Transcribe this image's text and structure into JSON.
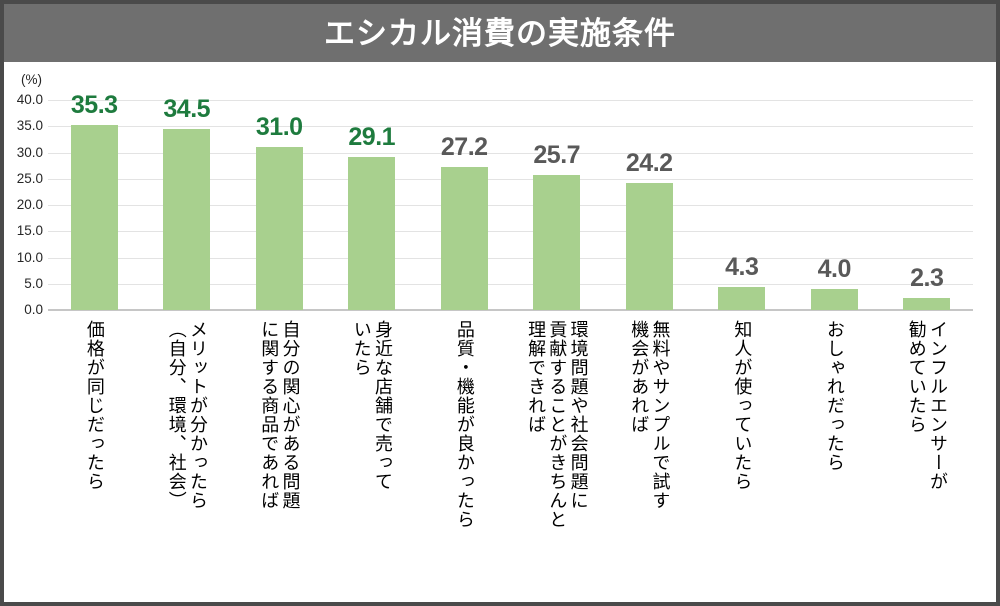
{
  "frame": {
    "border_color": "#4a4a4a",
    "background": "#ffffff"
  },
  "header": {
    "title": "エシカル消費の実施条件",
    "background": "#6f6f6f",
    "text_color": "#ffffff"
  },
  "chart_data": {
    "type": "bar",
    "title": "エシカル消費の実施条件",
    "unit_label": "(%)",
    "xlabel": "",
    "ylabel": "(%)",
    "ylim": [
      0,
      40
    ],
    "ytick_step": 5,
    "ytick_labels": [
      "40.0",
      "35.0",
      "30.0",
      "25.0",
      "20.0",
      "15.0",
      "10.0",
      "5.0",
      "0.0"
    ],
    "grid": true,
    "legend": "none",
    "bar_color": "#a8d08e",
    "gridline_color": "#e3e3e3",
    "baseline_color": "#c6c6c6",
    "value_label_color_highlight": "#1e7b3e",
    "value_label_color_normal": "#595959",
    "categories": [
      [
        "価格が同じだったら"
      ],
      [
        "メリットが分かったら",
        "（自分、環境、社会）"
      ],
      [
        "自分の関心がある問題",
        "に関する商品であれば"
      ],
      [
        "身近な店舗で売って",
        "いたら"
      ],
      [
        "品質・機能が良かったら"
      ],
      [
        "環境問題や社会問題に",
        "貢献することがきちんと",
        "理解できれば"
      ],
      [
        "無料やサンプルで試す",
        "機会があれば"
      ],
      [
        "知人が使っていたら"
      ],
      [
        "おしゃれだったら"
      ],
      [
        "インフルエンサーが",
        "勧めていたら"
      ]
    ],
    "values": [
      35.3,
      34.5,
      31.0,
      29.1,
      27.2,
      25.7,
      24.2,
      4.3,
      4.0,
      2.3
    ],
    "value_labels": [
      "35.3",
      "34.5",
      "31.0",
      "29.1",
      "27.2",
      "25.7",
      "24.2",
      "4.3",
      "4.0",
      "2.3"
    ],
    "highlighted": [
      true,
      true,
      true,
      true,
      false,
      false,
      false,
      false,
      false,
      false
    ]
  }
}
